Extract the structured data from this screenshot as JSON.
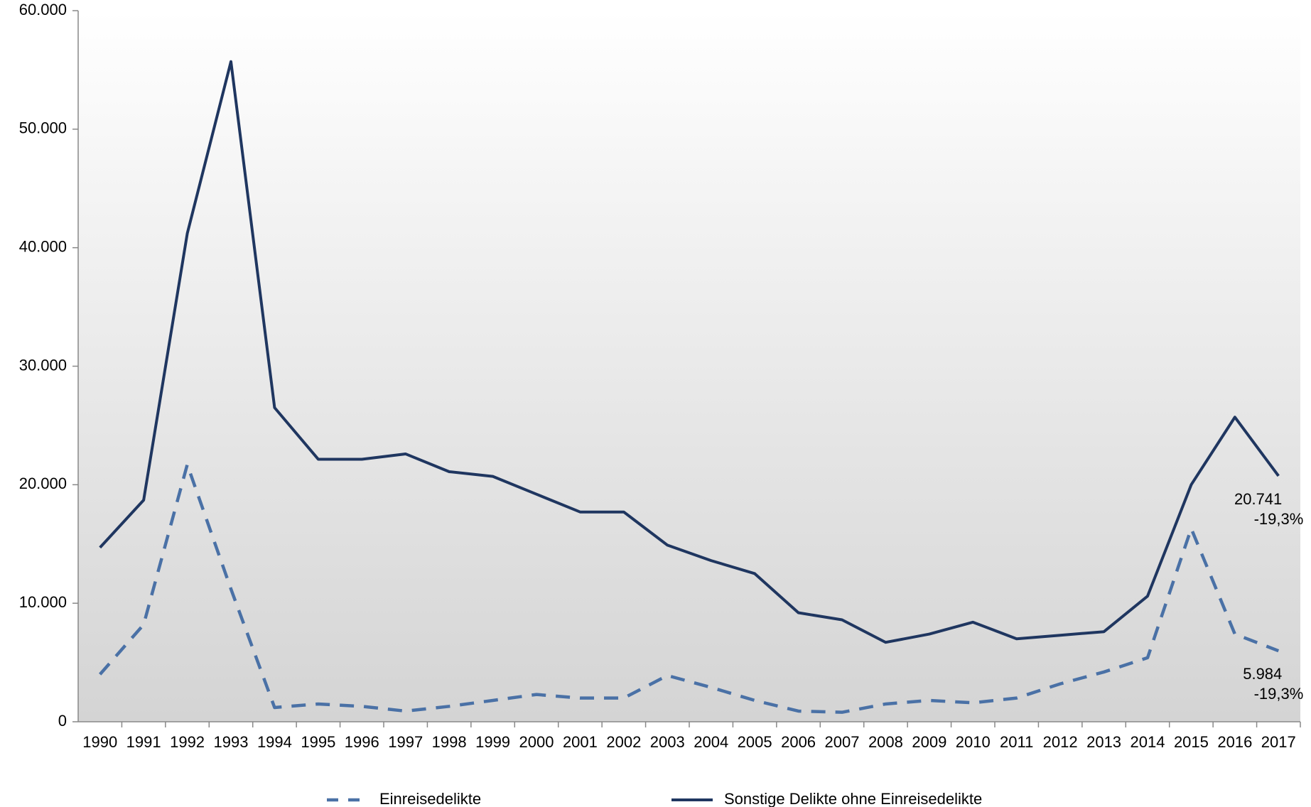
{
  "chart_data": {
    "type": "line",
    "categories": [
      "1990",
      "1991",
      "1992",
      "1993",
      "1994",
      "1995",
      "1996",
      "1997",
      "1998",
      "1999",
      "2000",
      "2001",
      "2002",
      "2003",
      "2004",
      "2005",
      "2006",
      "2007",
      "2008",
      "2009",
      "2010",
      "2011",
      "2012",
      "2013",
      "2014",
      "2015",
      "2016",
      "2017"
    ],
    "series": [
      {
        "name": "Einreisedelikte",
        "color": "#4a71a6",
        "dash": true,
        "values": [
          4000,
          8200,
          21700,
          11200,
          1200,
          1500,
          1300,
          900,
          1300,
          1800,
          2300,
          2000,
          2000,
          3900,
          2900,
          1800,
          900,
          800,
          1500,
          1800,
          1600,
          2000,
          3200,
          4200,
          5400,
          16300,
          7400,
          5984
        ]
      },
      {
        "name": "Sonstige Delikte ohne Einreisedelikte",
        "color": "#1f3660",
        "dash": false,
        "values": [
          14700,
          18700,
          41200,
          55700,
          26500,
          22150,
          22150,
          22600,
          21100,
          20700,
          19200,
          17700,
          17700,
          14900,
          13600,
          12500,
          9200,
          8600,
          6700,
          7400,
          8400,
          7000,
          7300,
          7600,
          10600,
          20000,
          25700,
          20741
        ]
      }
    ],
    "annotations": [
      {
        "value_label": "5.984",
        "change": "-19,3%"
      },
      {
        "value_label": "20.741",
        "change": "-19,3%"
      }
    ],
    "ylim": [
      0,
      60000
    ],
    "yticks": [
      0,
      {
        "value": 10000,
        "label": "10.000"
      },
      {
        "value": 20000,
        "label": "20.000"
      },
      {
        "value": 30000,
        "label": "30.000"
      },
      {
        "value": 40000,
        "label": "40.000"
      },
      {
        "value": 50000,
        "label": "50.000"
      },
      {
        "value": 60000,
        "label": "60.000"
      }
    ],
    "legend": "bottom"
  }
}
